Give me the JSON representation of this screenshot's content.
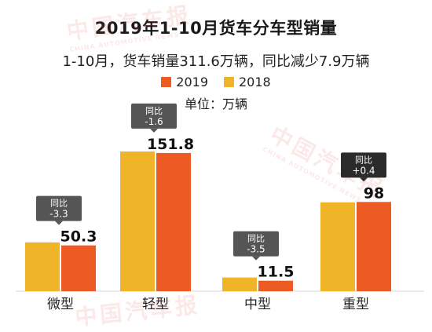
{
  "watermark": {
    "text": "中国汽车报",
    "subtext": "CHINA AUTOMOTIVE NEWS"
  },
  "chart_data": {
    "type": "bar",
    "title": "2019年1-10月货车分车型销量",
    "subtitle": "1-10月，货车销量311.6万辆，同比减少7.9万辆",
    "unit_label": "单位：万辆",
    "categories": [
      "微型",
      "轻型",
      "中型",
      "重型"
    ],
    "series": [
      {
        "name": "2018",
        "color": "#f0b429",
        "values": [
          53.6,
          153.4,
          15.0,
          97.6
        ]
      },
      {
        "name": "2019",
        "color": "#ee5a24",
        "values": [
          50.3,
          151.8,
          11.5,
          98.0
        ]
      }
    ],
    "value_labels": [
      "50.3",
      "151.8",
      "11.5",
      "98"
    ],
    "yoy_title": "同比",
    "yoy_changes": [
      "-3.3",
      "-1.6",
      "-3.5",
      "+0.4"
    ],
    "colors": {
      "bar_2018": "#f0b429",
      "bar_2019": "#ee5a24",
      "callout_bg": "#555555",
      "callout_bg_dark": "#2b2b2b"
    }
  }
}
